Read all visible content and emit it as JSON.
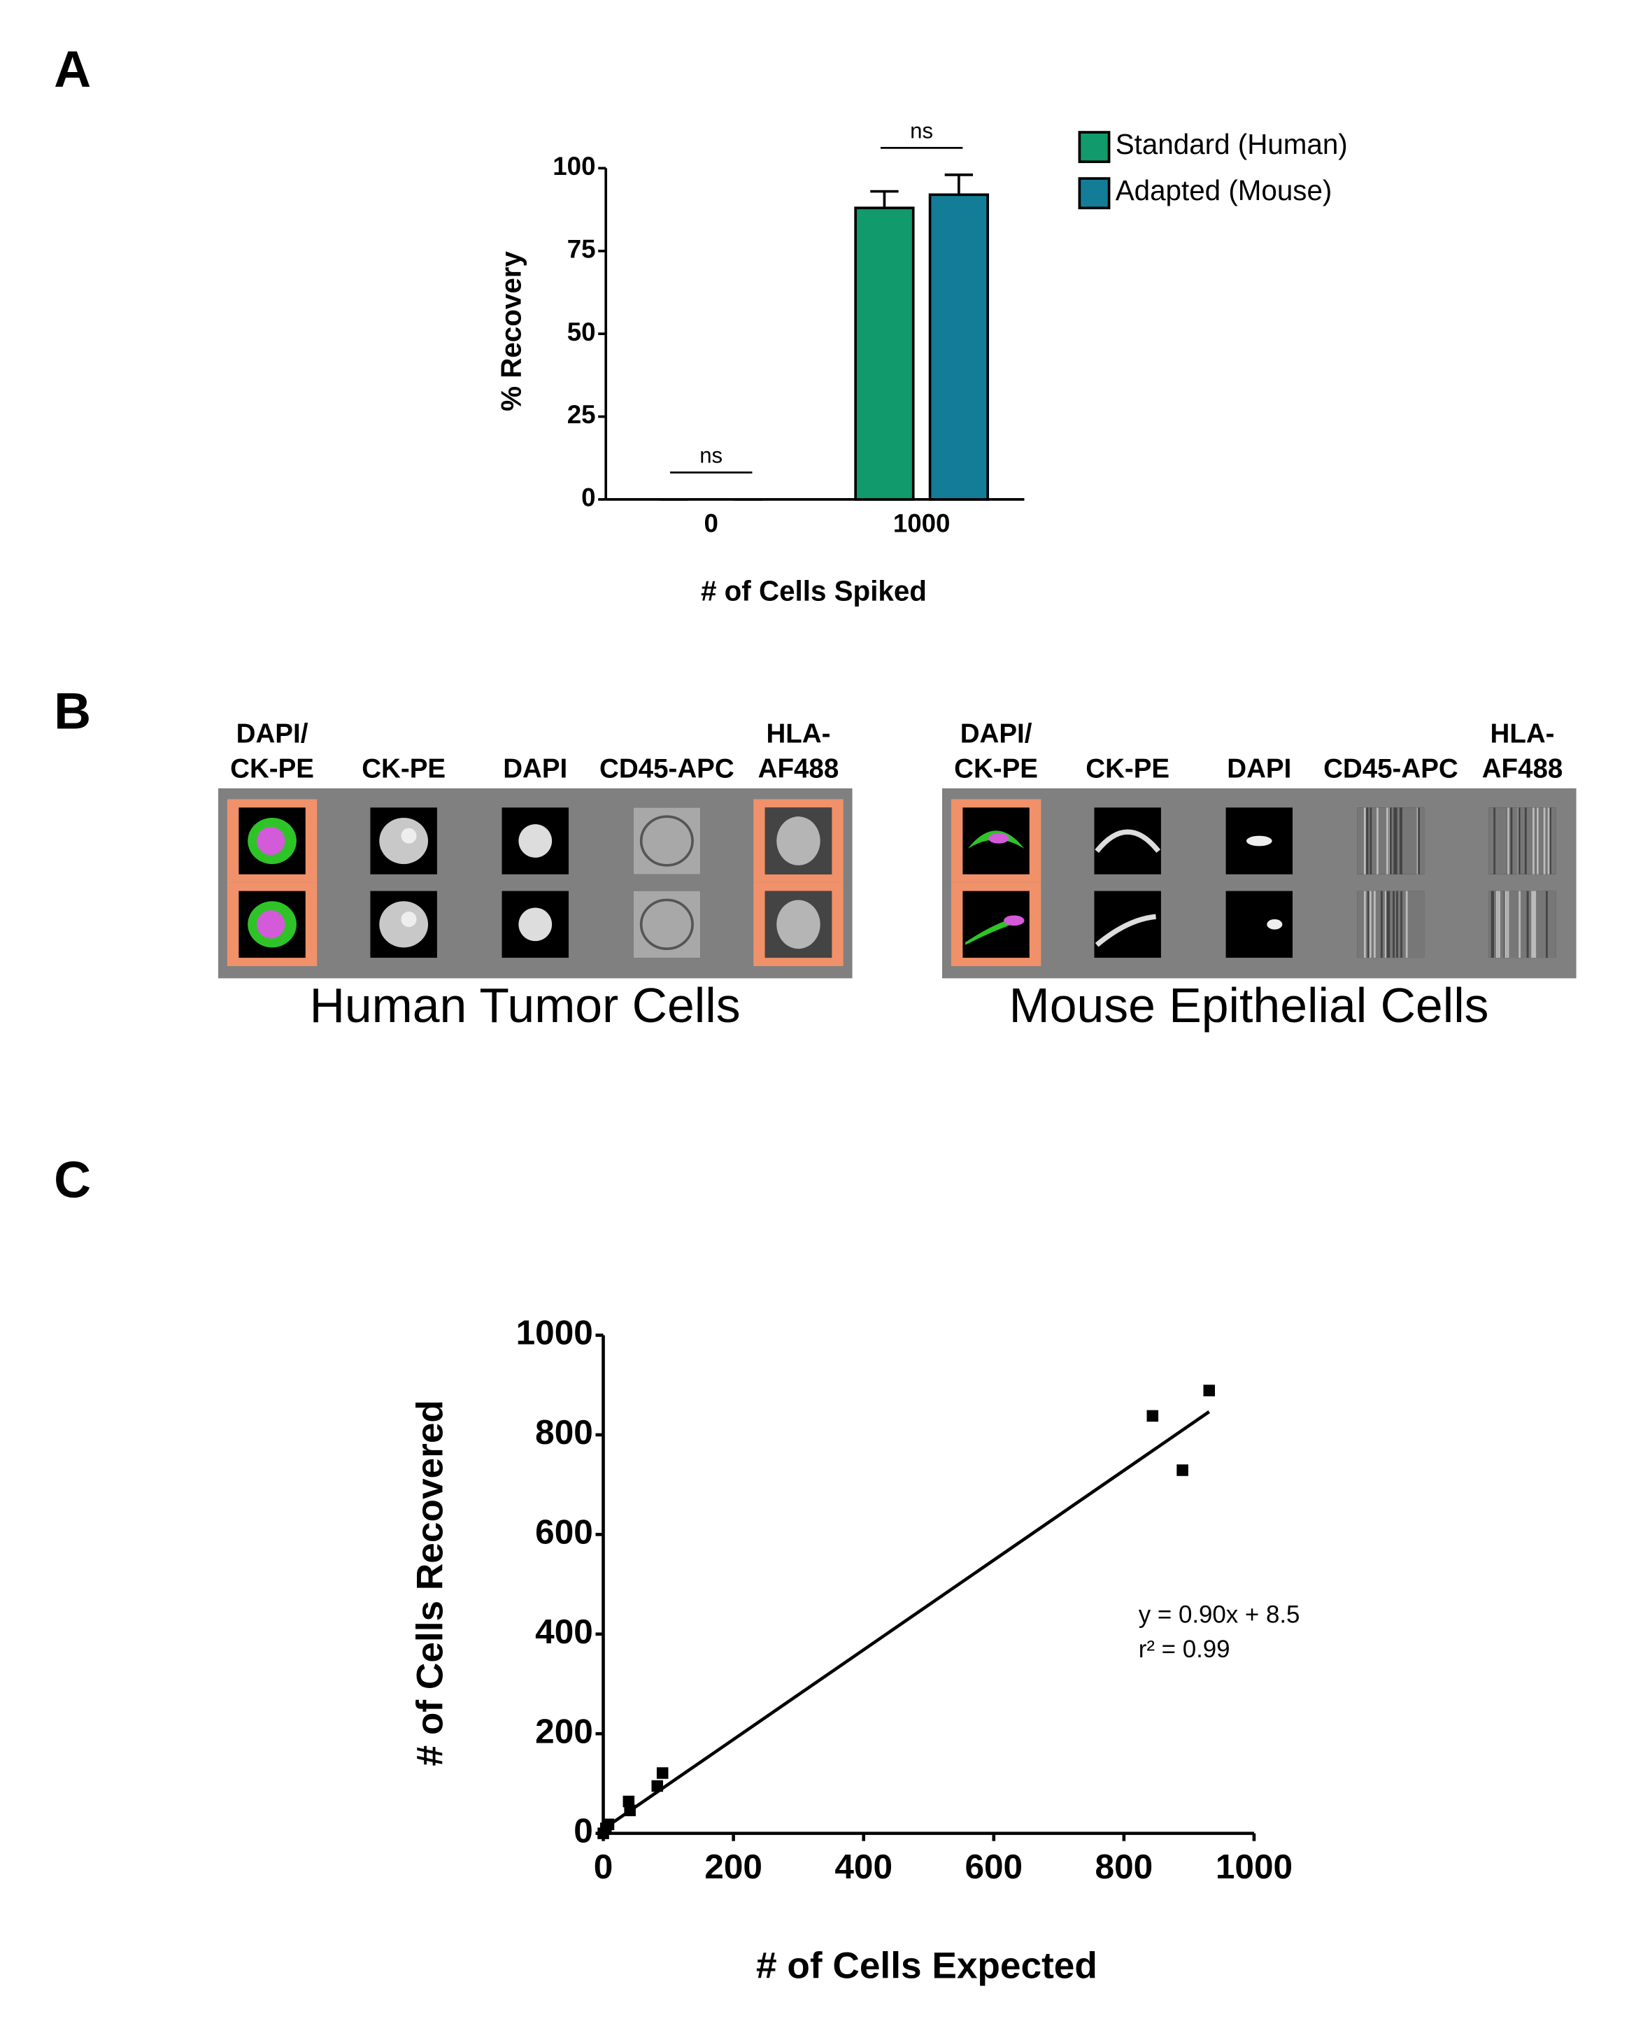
{
  "chart_data": [
    {
      "type": "bar",
      "panel_label": "A",
      "x_label": "# of Cells Spiked",
      "y_label": "% Recovery",
      "categories": [
        "0",
        "1000"
      ],
      "series": [
        {
          "name": "Standard (Human)",
          "color": "#119a6c",
          "values": [
            0,
            88
          ],
          "errors": [
            0,
            5
          ]
        },
        {
          "name": "Adapted (Mouse)",
          "color": "#137d98",
          "values": [
            0,
            92
          ],
          "errors": [
            0,
            6
          ]
        }
      ],
      "ylim": [
        0,
        100
      ],
      "yticks": [
        0,
        25,
        50,
        75,
        100
      ],
      "annotations": [
        "ns",
        "ns"
      ]
    },
    {
      "type": "scatter",
      "panel_label": "C",
      "x_label": "# of Cells Expected",
      "y_label": "# of Cells Recovered",
      "x": [
        0,
        4,
        8,
        39,
        41,
        83,
        91,
        844,
        890,
        931
      ],
      "y": [
        0,
        10,
        18,
        64,
        46,
        95,
        121,
        838,
        729,
        889
      ],
      "color": "#000000",
      "xlim": [
        0,
        1000
      ],
      "xticks": [
        0,
        200,
        400,
        600,
        800,
        1000
      ],
      "ylim": [
        0,
        1000
      ],
      "yticks": [
        0,
        200,
        400,
        600,
        800,
        1000
      ],
      "fit": {
        "slope": 0.9,
        "intercept": 8.5
      },
      "annotations": [
        "y = 0.90x + 8.5",
        "r² = 0.99"
      ]
    }
  ],
  "panel_b": {
    "label": "B",
    "groups": [
      {
        "title": "Human Tumor Cells",
        "channels": [
          [
            "DAPI/",
            "CK-PE"
          ],
          [
            "CK-PE"
          ],
          [
            "DAPI"
          ],
          [
            "CD45-APC"
          ],
          [
            "HLA-",
            "AF488"
          ]
        ]
      },
      {
        "title": "Mouse Epithelial Cells",
        "channels": [
          [
            "DAPI/",
            "CK-PE"
          ],
          [
            "CK-PE"
          ],
          [
            "DAPI"
          ],
          [
            "CD45-APC"
          ],
          [
            "HLA-",
            "AF488"
          ]
        ]
      }
    ]
  }
}
